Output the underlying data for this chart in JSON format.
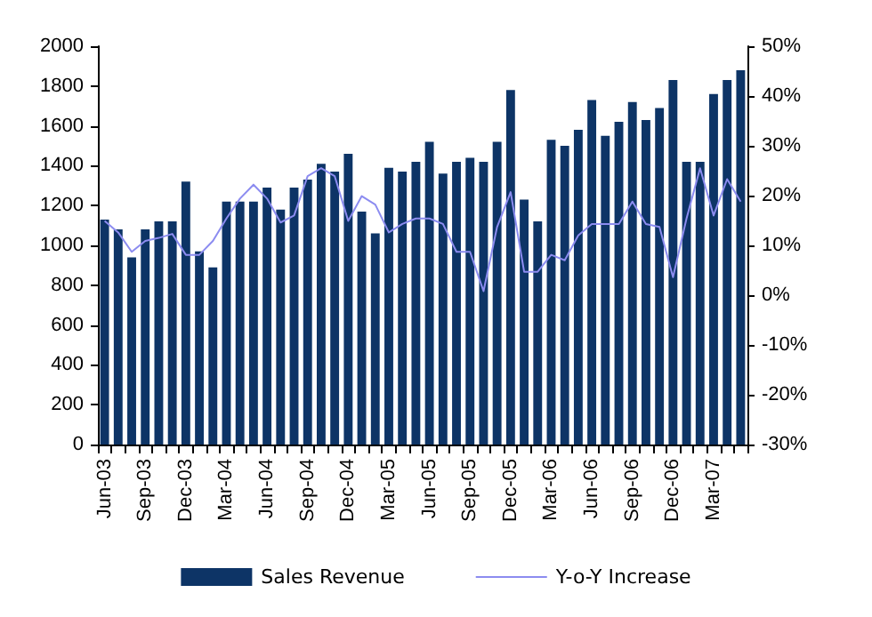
{
  "chart_data": {
    "type": "bar",
    "categories": [
      "Jun-03",
      null,
      null,
      "Sep-03",
      null,
      null,
      "Dec-03",
      null,
      null,
      "Mar-04",
      null,
      null,
      "Jun-04",
      null,
      null,
      "Sep-04",
      null,
      null,
      "Dec-04",
      null,
      null,
      "Mar-05",
      null,
      null,
      "Jun-05",
      null,
      null,
      "Sep-05",
      null,
      null,
      "Dec-05",
      null,
      null,
      "Mar-06",
      null,
      null,
      "Jun-06",
      null,
      null,
      "Sep-06",
      null,
      null,
      "Dec-06",
      null,
      null,
      "Mar-07",
      null,
      null
    ],
    "series": [
      {
        "name": "Sales Revenue",
        "color": "#0d3466",
        "values": [
          1130,
          1080,
          940,
          1080,
          1120,
          1120,
          1320,
          970,
          890,
          1220,
          1220,
          1220,
          1290,
          1180,
          1290,
          1330,
          1410,
          1370,
          1460,
          1170,
          1060,
          1390,
          1370,
          1420,
          1520,
          1360,
          1420,
          1440,
          1420,
          1520,
          1780,
          1230,
          1120,
          1530,
          1500,
          1580,
          1730,
          1550,
          1620,
          1720,
          1630,
          1690,
          1830,
          1420,
          1420,
          1760,
          1830,
          1880
        ]
      },
      {
        "name": "Y-o-Y Increase",
        "type": "line",
        "axis": "y2",
        "color": "#8c8cf0",
        "values": [
          14.9,
          12.6,
          8.7,
          10.9,
          11.5,
          12.3,
          8.1,
          8.1,
          10.9,
          15.4,
          19.4,
          22.2,
          19.4,
          14.6,
          16,
          23.9,
          25.5,
          23.9,
          14.9,
          19.9,
          18.2,
          12.6,
          14.3,
          15.4,
          15.4,
          14.3,
          8.7,
          8.7,
          0.8,
          13.7,
          20.7,
          4.7,
          4.7,
          8.1,
          7,
          12,
          14.3,
          14.3,
          14.3,
          18.8,
          14.3,
          13.7,
          3.6,
          15.4,
          25.5,
          16,
          23.3,
          18.8
        ]
      }
    ],
    "ylim": [
      0,
      2000
    ],
    "yticks": [
      0,
      200,
      400,
      600,
      800,
      1000,
      1200,
      1400,
      1600,
      1800,
      2000
    ],
    "y2lim": [
      -30,
      50
    ],
    "y2ticks": [
      {
        "value": -30,
        "label": "-30%"
      },
      {
        "value": -20,
        "label": "-20%"
      },
      {
        "value": -10,
        "label": "-10%"
      },
      {
        "value": 0,
        "label": "0%"
      },
      {
        "value": 10,
        "label": "10%"
      },
      {
        "value": 20,
        "label": "20%"
      },
      {
        "value": 30,
        "label": "30%"
      },
      {
        "value": 40,
        "label": "40%"
      },
      {
        "value": 50,
        "label": "50%"
      }
    ],
    "legend": "bottom",
    "grid": false,
    "marker": "none",
    "line_style": "solid"
  }
}
